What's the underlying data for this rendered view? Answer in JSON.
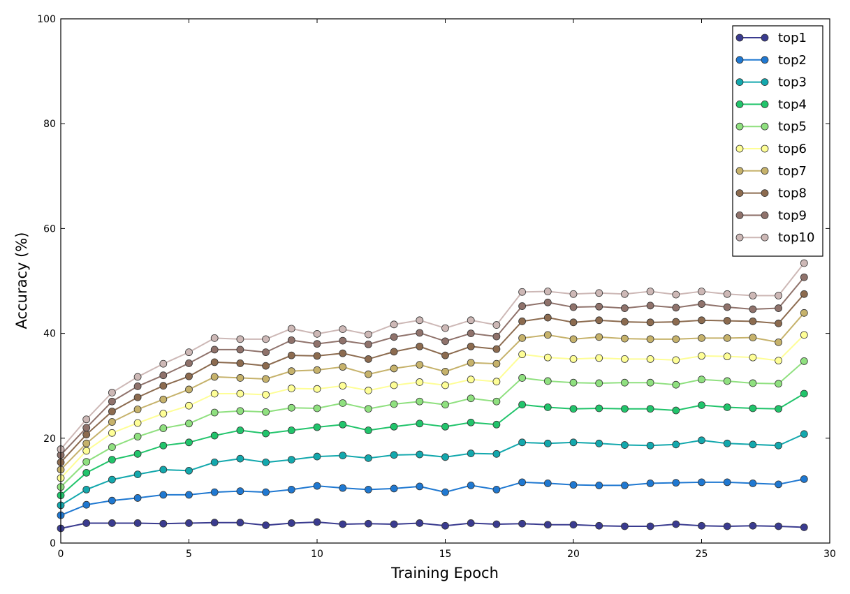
{
  "chart_data": {
    "type": "line",
    "title": "",
    "xlabel": "Training Epoch",
    "ylabel": "Accuracy (%)",
    "xlim": [
      0,
      30
    ],
    "ylim": [
      0,
      100
    ],
    "xticks": [
      0,
      5,
      10,
      15,
      20,
      25,
      30
    ],
    "yticks": [
      0,
      20,
      40,
      60,
      80,
      100
    ],
    "xtick_labels": [
      "0",
      "5",
      "10",
      "15",
      "20",
      "25",
      "30"
    ],
    "ytick_labels": [
      "0",
      "20",
      "40",
      "60",
      "80",
      "100"
    ],
    "grid": false,
    "legend_position": "top-right",
    "x": [
      0,
      1,
      2,
      3,
      4,
      5,
      6,
      7,
      8,
      9,
      10,
      11,
      12,
      13,
      14,
      15,
      16,
      17,
      18,
      19,
      20,
      21,
      22,
      23,
      24,
      25,
      26,
      27,
      28,
      29
    ],
    "series": [
      {
        "name": "top1",
        "color": "#3a3b8f",
        "values": [
          2.8,
          3.8,
          3.8,
          3.8,
          3.7,
          3.8,
          3.9,
          3.9,
          3.4,
          3.8,
          4.0,
          3.6,
          3.7,
          3.6,
          3.8,
          3.3,
          3.8,
          3.6,
          3.7,
          3.5,
          3.5,
          3.3,
          3.2,
          3.2,
          3.6,
          3.3,
          3.2,
          3.3,
          3.2,
          3.0
        ]
      },
      {
        "name": "top2",
        "color": "#1f78d1",
        "values": [
          5.3,
          7.3,
          8.1,
          8.6,
          9.2,
          9.2,
          9.7,
          9.9,
          9.7,
          10.2,
          10.9,
          10.5,
          10.2,
          10.4,
          10.8,
          9.7,
          11.0,
          10.2,
          11.6,
          11.4,
          11.1,
          11.0,
          11.0,
          11.4,
          11.5,
          11.6,
          11.6,
          11.4,
          11.2,
          12.2
        ]
      },
      {
        "name": "top3",
        "color": "#13a8ad",
        "values": [
          7.2,
          10.2,
          12.1,
          13.1,
          14.0,
          13.8,
          15.4,
          16.1,
          15.4,
          15.9,
          16.5,
          16.7,
          16.2,
          16.8,
          16.9,
          16.4,
          17.1,
          17.0,
          19.2,
          19.0,
          19.2,
          19.0,
          18.7,
          18.6,
          18.8,
          19.6,
          19.0,
          18.8,
          18.6,
          20.8
        ]
      },
      {
        "name": "top4",
        "color": "#21c46b",
        "values": [
          9.1,
          13.4,
          15.9,
          17.0,
          18.6,
          19.2,
          20.5,
          21.5,
          20.9,
          21.5,
          22.1,
          22.6,
          21.5,
          22.2,
          22.8,
          22.2,
          23.0,
          22.6,
          26.4,
          25.9,
          25.6,
          25.7,
          25.6,
          25.6,
          25.3,
          26.3,
          25.9,
          25.7,
          25.6,
          28.5
        ]
      },
      {
        "name": "top5",
        "color": "#8fe07f",
        "values": [
          10.7,
          15.5,
          18.3,
          20.3,
          21.9,
          22.8,
          24.9,
          25.2,
          25.0,
          25.8,
          25.7,
          26.7,
          25.6,
          26.5,
          27.0,
          26.4,
          27.6,
          27.0,
          31.5,
          30.9,
          30.6,
          30.5,
          30.6,
          30.6,
          30.2,
          31.2,
          30.9,
          30.5,
          30.4,
          34.7
        ]
      },
      {
        "name": "top6",
        "color": "#fefe96",
        "values": [
          12.4,
          17.6,
          21.0,
          22.9,
          24.7,
          26.2,
          28.5,
          28.5,
          28.3,
          29.5,
          29.4,
          30.0,
          29.1,
          30.1,
          30.7,
          30.1,
          31.2,
          30.8,
          36.0,
          35.4,
          35.1,
          35.3,
          35.1,
          35.1,
          34.9,
          35.7,
          35.6,
          35.4,
          34.8,
          39.7
        ]
      },
      {
        "name": "top7",
        "color": "#c6b26b",
        "values": [
          14.0,
          19.0,
          23.1,
          25.5,
          27.4,
          29.3,
          31.7,
          31.5,
          31.3,
          32.8,
          33.0,
          33.6,
          32.2,
          33.3,
          34.0,
          32.7,
          34.4,
          34.2,
          39.1,
          39.7,
          38.9,
          39.3,
          39.0,
          38.9,
          38.9,
          39.1,
          39.1,
          39.2,
          38.3,
          43.9
        ]
      },
      {
        "name": "top8",
        "color": "#8c6b4f",
        "values": [
          15.4,
          20.7,
          25.1,
          27.8,
          30.0,
          31.8,
          34.5,
          34.3,
          33.8,
          35.8,
          35.7,
          36.2,
          35.1,
          36.5,
          37.5,
          35.8,
          37.5,
          37.0,
          42.3,
          43.0,
          42.1,
          42.5,
          42.2,
          42.1,
          42.2,
          42.5,
          42.4,
          42.3,
          41.9,
          47.5
        ]
      },
      {
        "name": "top9",
        "color": "#8f726b",
        "values": [
          16.8,
          22.0,
          27.0,
          29.9,
          32.0,
          34.3,
          36.9,
          36.9,
          36.4,
          38.7,
          38.0,
          38.6,
          37.9,
          39.3,
          40.1,
          38.5,
          40.0,
          39.4,
          45.2,
          45.9,
          45.0,
          45.1,
          44.8,
          45.3,
          44.9,
          45.6,
          45.0,
          44.6,
          44.8,
          50.7
        ]
      },
      {
        "name": "top10",
        "color": "#cdb8b6",
        "values": [
          17.9,
          23.6,
          28.7,
          31.7,
          34.2,
          36.4,
          39.1,
          38.9,
          38.9,
          40.9,
          39.9,
          40.8,
          39.8,
          41.7,
          42.5,
          41.0,
          42.5,
          41.6,
          47.9,
          48.0,
          47.5,
          47.7,
          47.5,
          48.0,
          47.4,
          48.0,
          47.5,
          47.2,
          47.2,
          53.4
        ]
      }
    ]
  }
}
